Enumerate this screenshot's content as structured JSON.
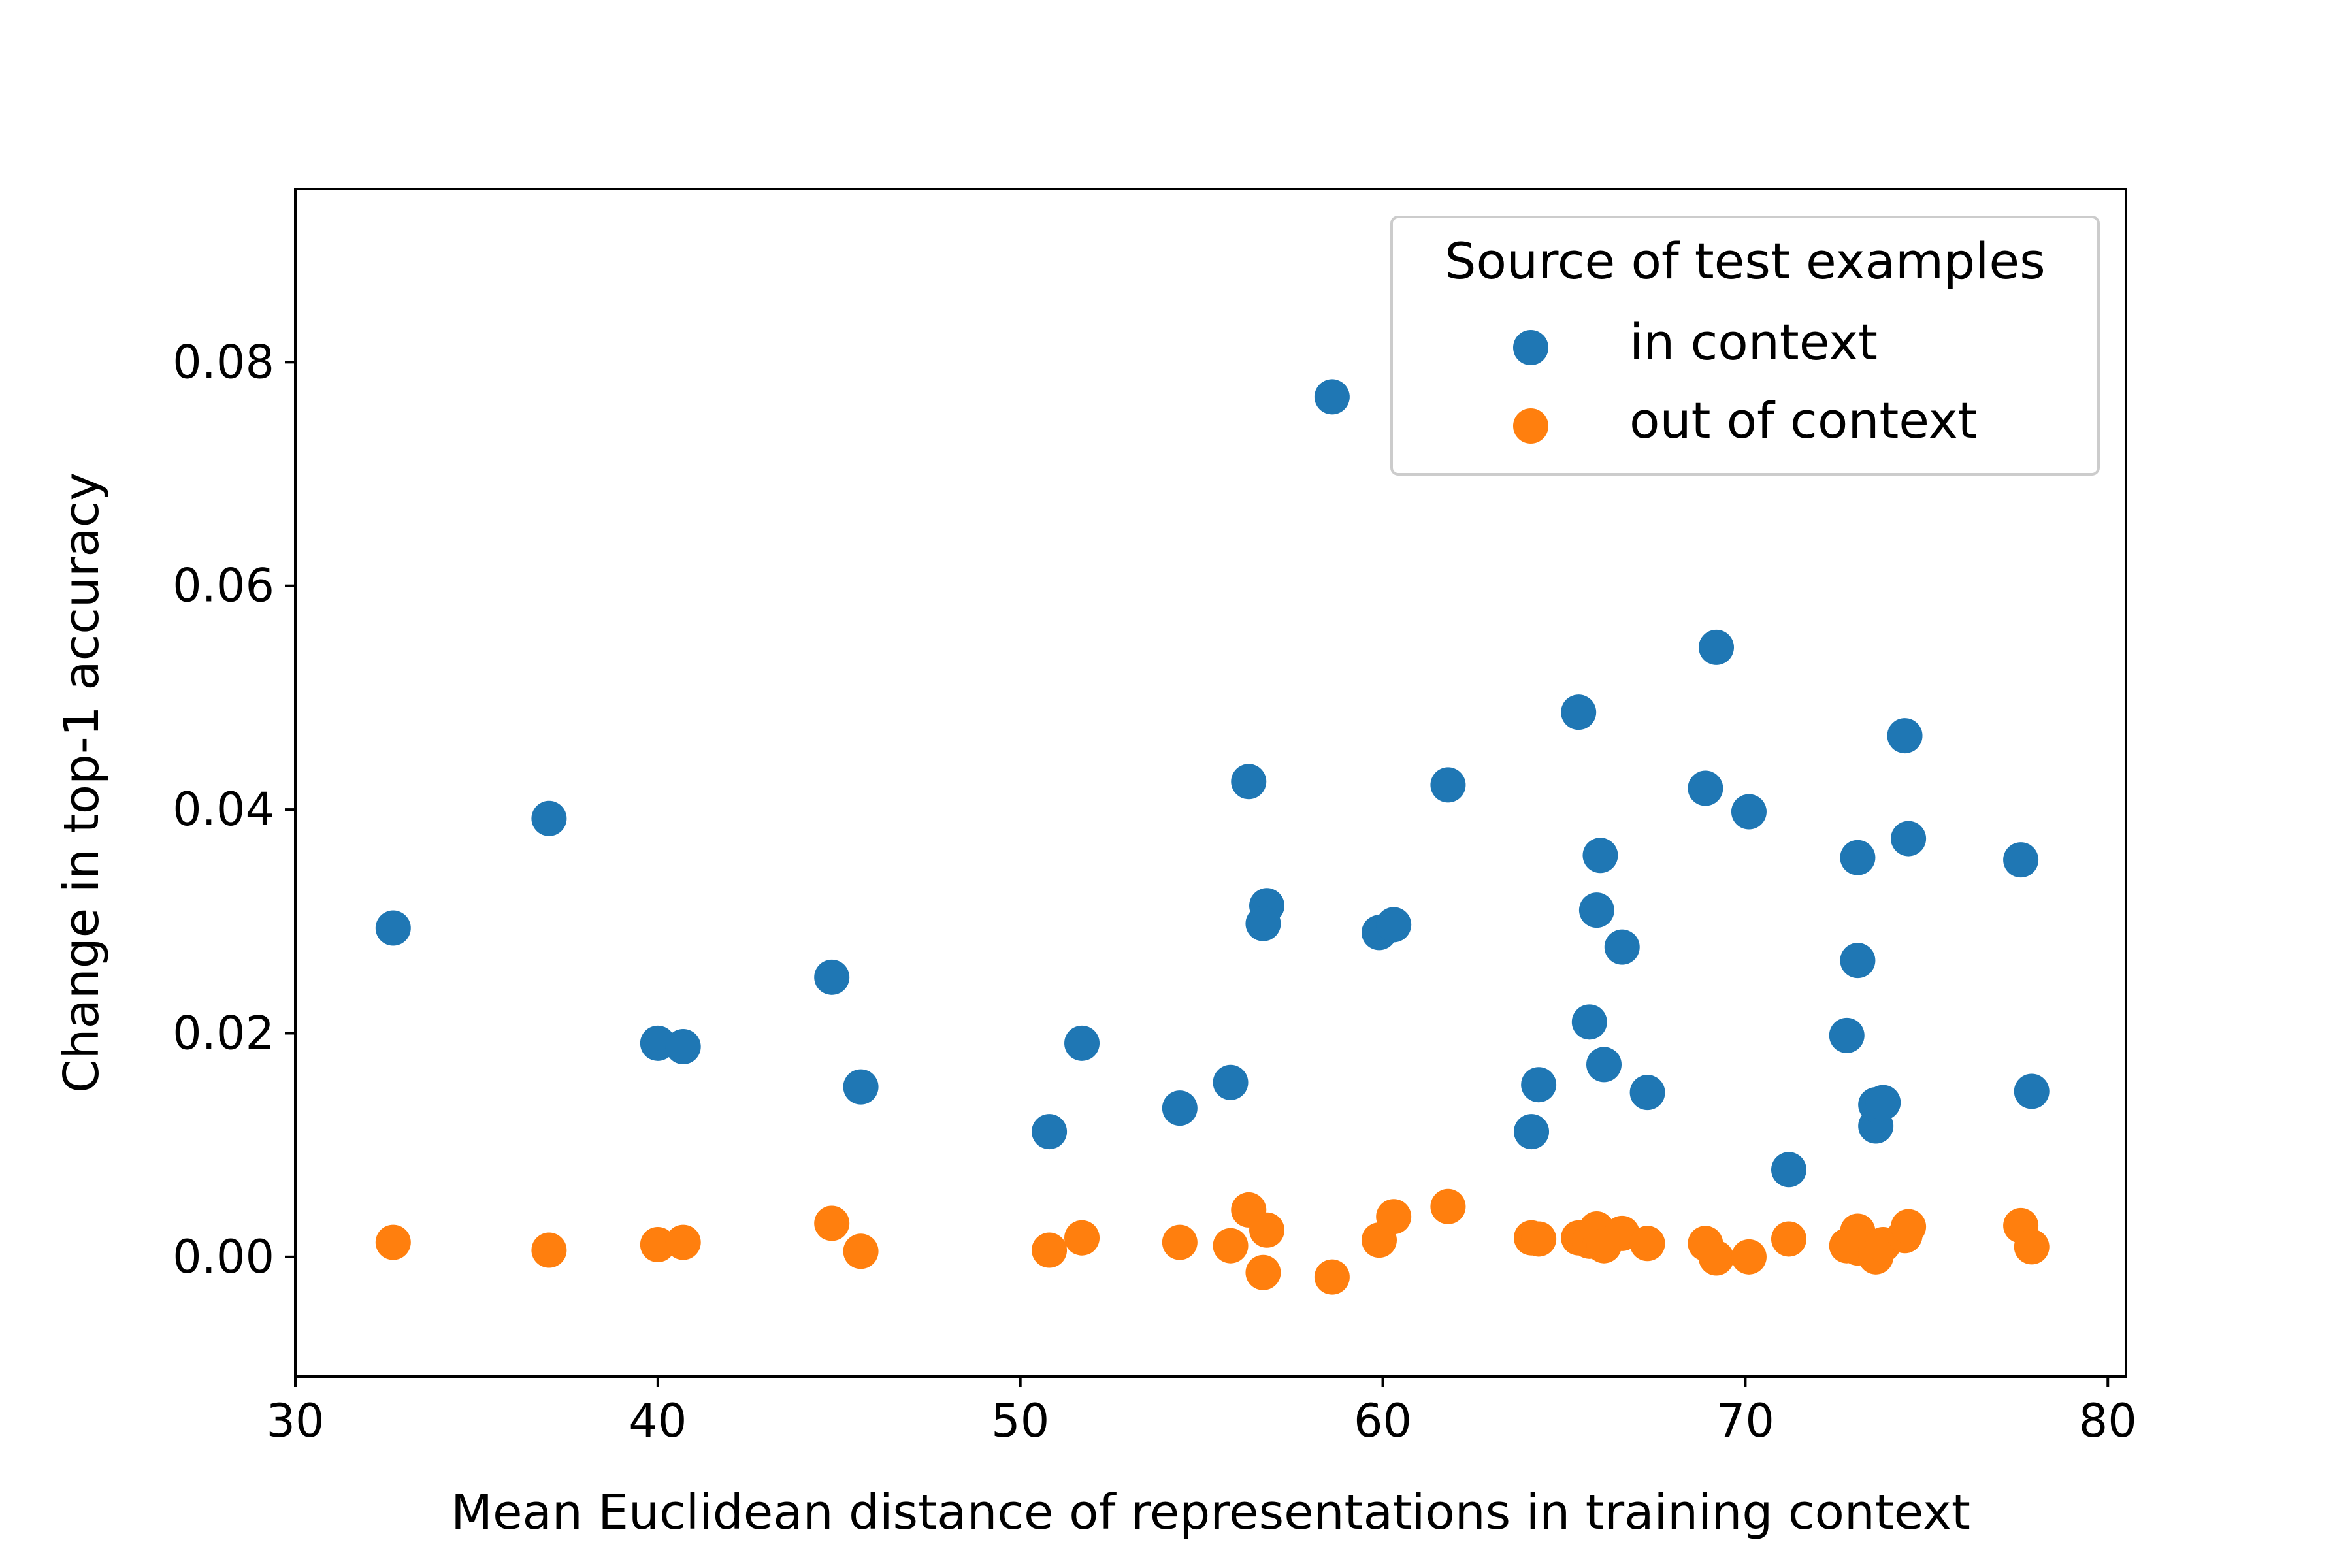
{
  "chart_data": {
    "type": "scatter",
    "title": "",
    "xlabel": "Mean Euclidean distance of representations in training context",
    "ylabel": "Change in top-1 accuracy",
    "xlim": [
      30,
      80.5
    ],
    "ylim": [
      -0.0107,
      0.0955
    ],
    "x_ticks": [
      30,
      40,
      50,
      60,
      70,
      80
    ],
    "x_tick_labels": [
      "30",
      "40",
      "50",
      "60",
      "70",
      "80"
    ],
    "y_ticks": [
      0.0,
      0.02,
      0.04,
      0.06,
      0.08
    ],
    "y_tick_labels": [
      "0.00",
      "0.02",
      "0.04",
      "0.06",
      "0.08"
    ],
    "grid": false,
    "legend": {
      "title": "Source of test examples",
      "placement": "top-right"
    },
    "series": [
      {
        "name": "in context",
        "color": "#1f77b4",
        "points": [
          [
            32.7,
            0.0294
          ],
          [
            37.0,
            0.0392
          ],
          [
            40.0,
            0.0191
          ],
          [
            40.7,
            0.0188
          ],
          [
            44.8,
            0.025
          ],
          [
            45.6,
            0.0152
          ],
          [
            50.8,
            0.0112
          ],
          [
            51.7,
            0.0191
          ],
          [
            54.4,
            0.0133
          ],
          [
            55.8,
            0.0156
          ],
          [
            56.3,
            0.0425
          ],
          [
            56.8,
            0.0314
          ],
          [
            56.7,
            0.0298
          ],
          [
            58.6,
            0.0769
          ],
          [
            59.9,
            0.029
          ],
          [
            60.3,
            0.0297
          ],
          [
            61.8,
            0.0422
          ],
          [
            64.1,
            0.0112
          ],
          [
            64.3,
            0.0154
          ],
          [
            65.4,
            0.0487
          ],
          [
            65.7,
            0.021
          ],
          [
            65.9,
            0.031
          ],
          [
            66.0,
            0.0359
          ],
          [
            66.1,
            0.0172
          ],
          [
            66.6,
            0.0277
          ],
          [
            67.3,
            0.0147
          ],
          [
            68.9,
            0.0419
          ],
          [
            69.2,
            0.0545
          ],
          [
            70.1,
            0.0398
          ],
          [
            71.2,
            0.0078
          ],
          [
            72.8,
            0.0198
          ],
          [
            73.1,
            0.0357
          ],
          [
            73.1,
            0.0265
          ],
          [
            73.6,
            0.0117
          ],
          [
            73.6,
            0.0136
          ],
          [
            73.8,
            0.0138
          ],
          [
            74.4,
            0.0466
          ],
          [
            74.5,
            0.0374
          ],
          [
            77.6,
            0.0355
          ],
          [
            77.9,
            0.0148
          ]
        ]
      },
      {
        "name": "out of context",
        "color": "#ff7f0e",
        "points": [
          [
            32.7,
            0.0013
          ],
          [
            37.0,
            0.0006
          ],
          [
            40.0,
            0.0011
          ],
          [
            40.7,
            0.0013
          ],
          [
            44.8,
            0.003
          ],
          [
            45.6,
            0.0005
          ],
          [
            50.8,
            0.0006
          ],
          [
            51.7,
            0.0017
          ],
          [
            54.4,
            0.0013
          ],
          [
            55.8,
            0.001
          ],
          [
            56.3,
            0.0042
          ],
          [
            56.8,
            0.0024
          ],
          [
            56.7,
            -0.0014
          ],
          [
            58.6,
            -0.0018
          ],
          [
            59.9,
            0.0015
          ],
          [
            60.3,
            0.0036
          ],
          [
            61.8,
            0.0045
          ],
          [
            64.1,
            0.0017
          ],
          [
            64.3,
            0.0016
          ],
          [
            65.4,
            0.0017
          ],
          [
            65.7,
            0.0014
          ],
          [
            65.9,
            0.0025
          ],
          [
            66.0,
            0.0012
          ],
          [
            66.1,
            0.001
          ],
          [
            66.6,
            0.0021
          ],
          [
            67.3,
            0.0012
          ],
          [
            68.9,
            0.0012
          ],
          [
            69.2,
            -0.0001
          ],
          [
            70.1,
            0.0
          ],
          [
            71.2,
            0.0016
          ],
          [
            72.8,
            0.001
          ],
          [
            73.1,
            0.0023
          ],
          [
            73.1,
            0.0008
          ],
          [
            73.6,
            0.0
          ],
          [
            73.6,
            0.0008
          ],
          [
            73.8,
            0.0011
          ],
          [
            74.4,
            0.0019
          ],
          [
            74.5,
            0.0027
          ],
          [
            77.6,
            0.0028
          ],
          [
            77.9,
            0.0009
          ]
        ]
      }
    ]
  }
}
